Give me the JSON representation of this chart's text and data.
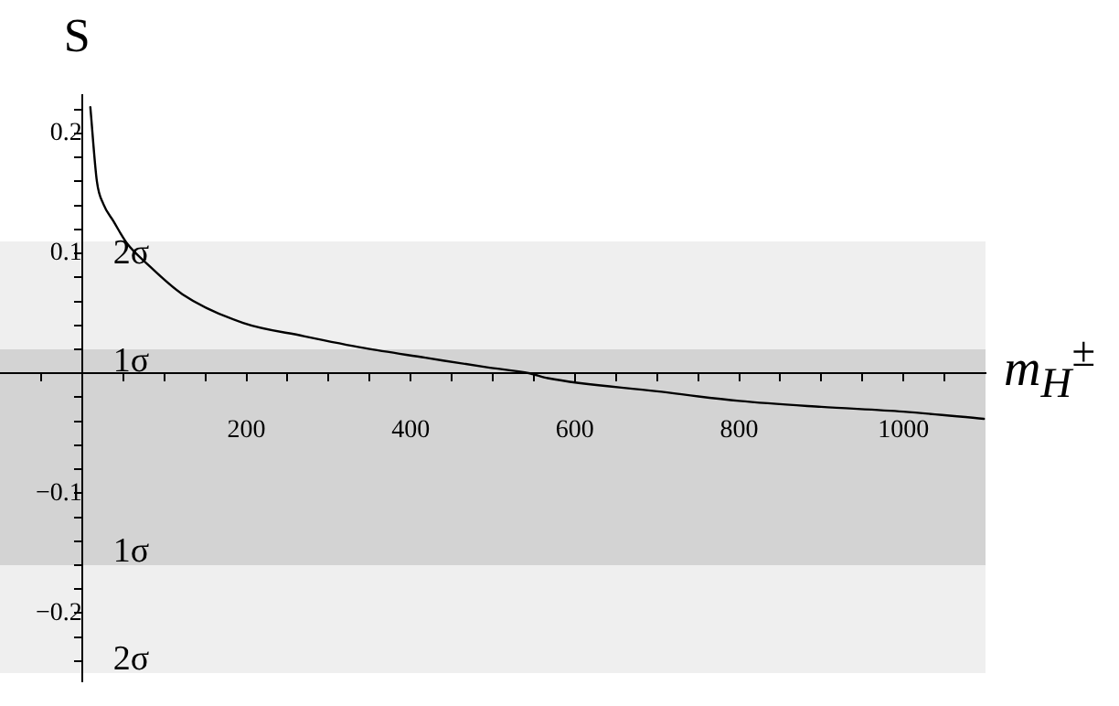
{
  "chart_data": {
    "type": "line",
    "ylabel": "S",
    "xlabel": "m$_{H}$$^{±}$",
    "x": [
      10,
      18,
      26,
      38,
      55,
      78,
      122,
      196,
      270,
      344,
      418,
      493,
      545,
      567,
      700,
      800,
      900,
      1000,
      1098
    ],
    "series": [
      {
        "color": "#000000",
        "values": [
          0.222,
          0.16,
          0.141,
          0.127,
          0.108,
          0.092,
          0.066,
          0.042,
          0.031,
          0.021,
          0.013,
          0.005,
          0,
          -0.004,
          -0.015,
          -0.023,
          -0.028,
          -0.032,
          -0.038
        ]
      }
    ],
    "xlim": [
      -100,
      1100
    ],
    "ylim": [
      -0.257,
      0.232
    ],
    "xticks": [
      {
        "value": -50,
        "label": null
      },
      {
        "value": 50,
        "label": null
      },
      {
        "value": 100,
        "label": null
      },
      {
        "value": 150,
        "label": null
      },
      200,
      {
        "value": 250,
        "label": null
      },
      {
        "value": 300,
        "label": null
      },
      {
        "value": 350,
        "label": null
      },
      400,
      {
        "value": 450,
        "label": null
      },
      {
        "value": 500,
        "label": null
      },
      {
        "value": 550,
        "label": null
      },
      600,
      {
        "value": 650,
        "label": null
      },
      {
        "value": 700,
        "label": null
      },
      {
        "value": 750,
        "label": null
      },
      800,
      {
        "value": 850,
        "label": null
      },
      {
        "value": 900,
        "label": null
      },
      {
        "value": 950,
        "label": null
      },
      1000,
      {
        "value": 1050,
        "label": null
      }
    ],
    "yticks": [
      {
        "value": -0.24,
        "label": null
      },
      {
        "value": -0.22,
        "label": null
      },
      {
        "value": -0.2,
        "label": "−0.2"
      },
      {
        "value": -0.18,
        "label": null
      },
      {
        "value": -0.16,
        "label": null
      },
      {
        "value": -0.14,
        "label": null
      },
      {
        "value": -0.12,
        "label": null
      },
      {
        "value": -0.1,
        "label": "−0.1"
      },
      {
        "value": -0.08,
        "label": null
      },
      {
        "value": -0.06,
        "label": null
      },
      {
        "value": -0.04,
        "label": null
      },
      {
        "value": -0.02,
        "label": null
      },
      {
        "value": 0.02,
        "label": null
      },
      {
        "value": 0.04,
        "label": null
      },
      {
        "value": 0.06,
        "label": null
      },
      {
        "value": 0.08,
        "label": null
      },
      0.1,
      {
        "value": 0.12,
        "label": null
      },
      {
        "value": 0.14,
        "label": null
      },
      {
        "value": 0.16,
        "label": null
      },
      {
        "value": 0.18,
        "label": null
      },
      0.2,
      {
        "value": 0.22,
        "label": null
      }
    ],
    "bands": [
      {
        "axis": "y",
        "from": -0.25,
        "to": 0.11,
        "label": "2σ",
        "color": "#efefef"
      },
      {
        "axis": "y",
        "from": -0.16,
        "to": 0.02,
        "label": "1σ",
        "color": "#d3d3d3"
      }
    ],
    "grid": false,
    "marker": "none",
    "line_style": "solid",
    "legend": false
  }
}
